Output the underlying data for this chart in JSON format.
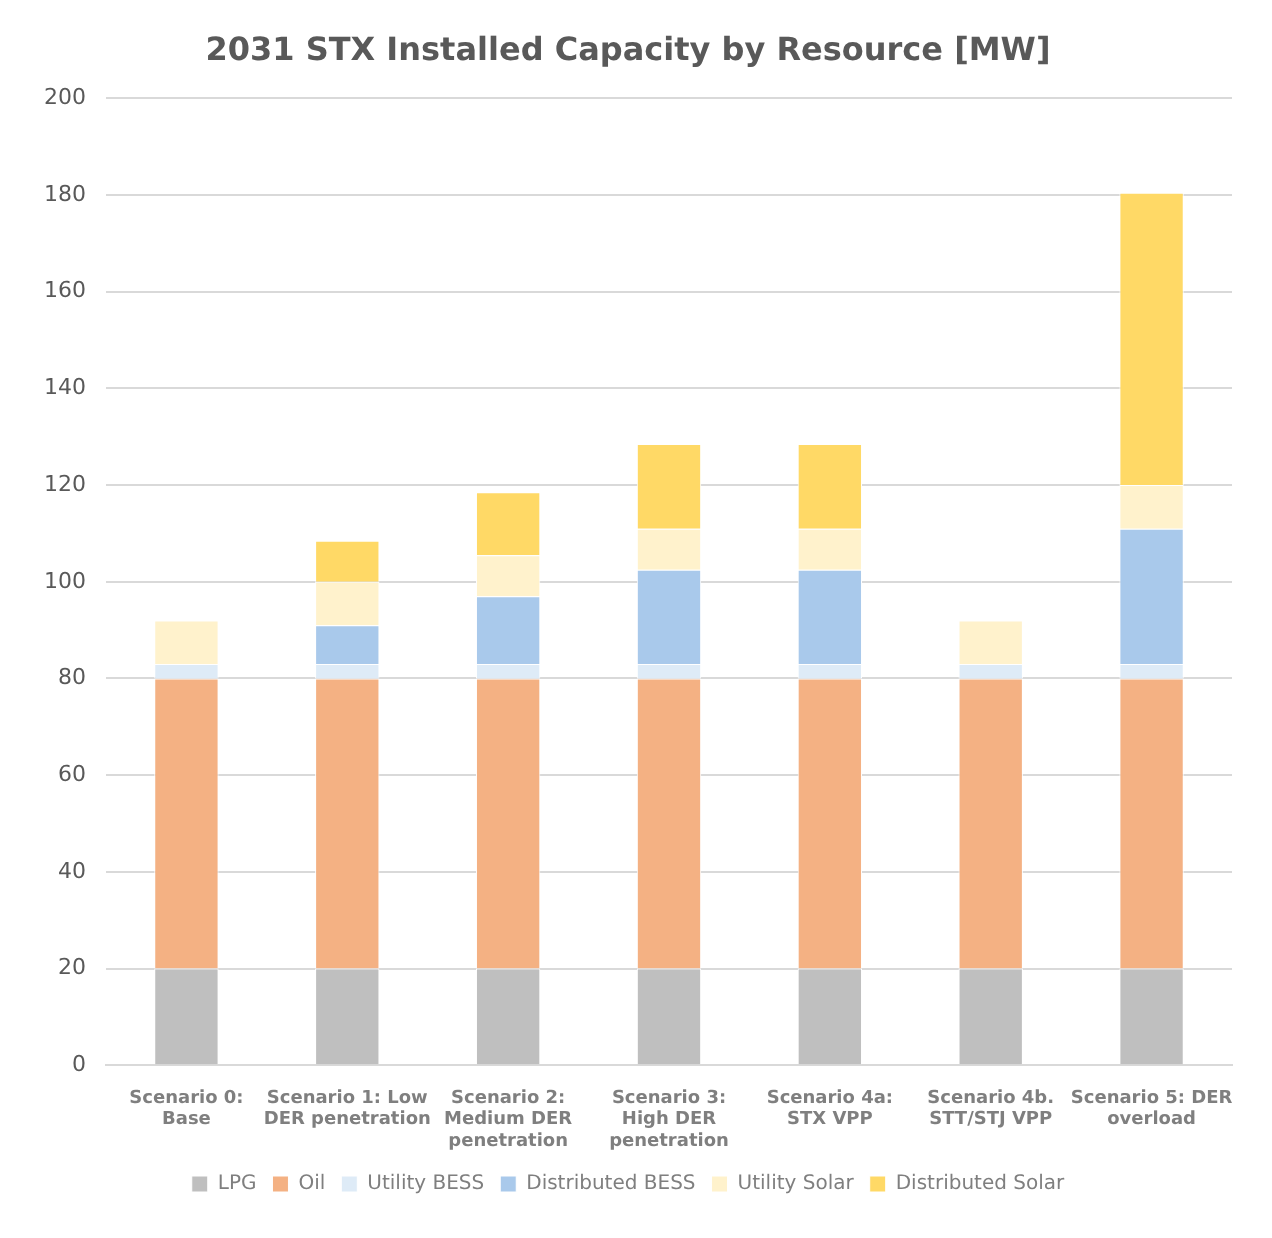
{
  "chart_data": {
    "type": "bar",
    "title": "2031 STX Installed Capacity by Resource [MW]",
    "categories": [
      "Scenario 0: Base",
      "Scenario 1: Low DER penetration",
      "Scenario 2: Medium DER penetration",
      "Scenario 3: High DER penetration",
      "Scenario 4a: STX VPP",
      "Scenario 4b. STT/STJ VPP",
      "Scenario 5: DER overload"
    ],
    "series": [
      {
        "name": "LPG",
        "color": "#bfbfbf",
        "values": [
          20,
          20,
          20,
          20,
          20,
          20,
          20
        ]
      },
      {
        "name": "Oil",
        "color": "#f4b183",
        "values": [
          60,
          60,
          60,
          60,
          60,
          60,
          60
        ]
      },
      {
        "name": "Utility BESS",
        "color": "#deebf7",
        "values": [
          3,
          3,
          3,
          3,
          3,
          3,
          3
        ]
      },
      {
        "name": "Distributed BESS",
        "color": "#a9c9eb",
        "values": [
          0,
          8,
          14,
          19.5,
          19.5,
          0,
          28
        ]
      },
      {
        "name": "Utility Solar",
        "color": "#fff2cc",
        "values": [
          9,
          9,
          8.5,
          8.5,
          8.5,
          9,
          9
        ]
      },
      {
        "name": "Distributed Solar",
        "color": "#ffd966",
        "values": [
          0,
          8.5,
          13,
          17.5,
          17.5,
          0,
          60.5
        ]
      }
    ],
    "stacked": true,
    "ylim": [
      0,
      200
    ],
    "yticks": [
      0,
      20,
      40,
      60,
      80,
      100,
      120,
      140,
      160,
      180,
      200
    ],
    "grid": "y",
    "legend": "bottom"
  }
}
